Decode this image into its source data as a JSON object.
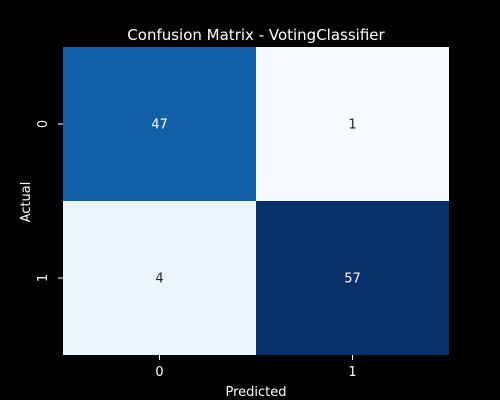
{
  "chart_data": {
    "type": "heatmap",
    "title": "Confusion Matrix - VotingClassifier",
    "xlabel": "Predicted",
    "ylabel": "Actual",
    "x_categories": [
      "0",
      "1"
    ],
    "y_categories": [
      "0",
      "1"
    ],
    "values": [
      [
        47,
        1
      ],
      [
        4,
        57
      ]
    ],
    "colormap": "Blues",
    "colorbar": false,
    "colors": {
      "background": "#000000",
      "text": "#ffffff",
      "dark_cell_text": "#ffffff",
      "light_cell_text": "#262626"
    }
  }
}
